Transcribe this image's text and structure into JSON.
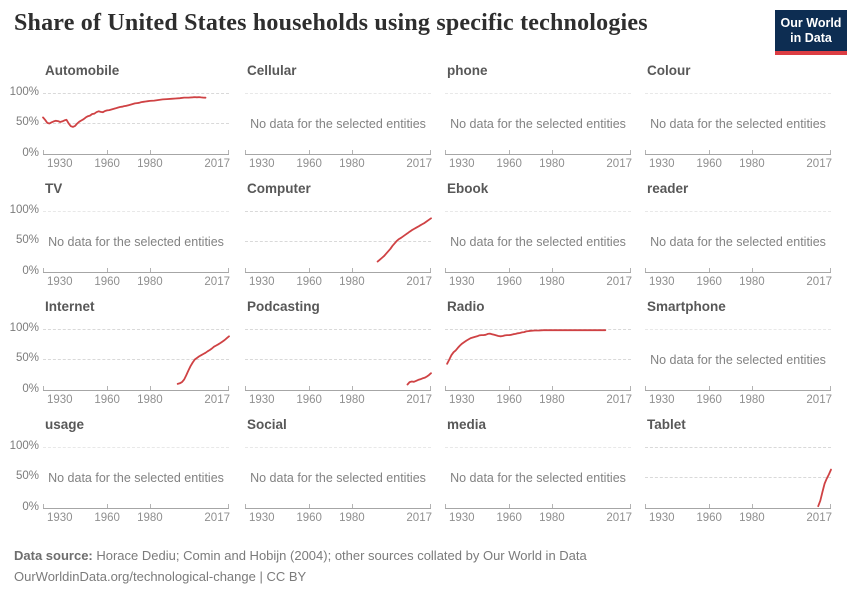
{
  "header": {
    "title": "Share of United States households using specific technologies",
    "logo": {
      "line1": "Our World",
      "line2": "in Data",
      "bg_color": "#0d2d52",
      "stripe_color": "#dc3d43",
      "text_color": "#ffffff"
    }
  },
  "chart_data": {
    "type": "line",
    "title": "Share of United States households using specific technologies",
    "x_range": [
      1930,
      2017
    ],
    "x_ticks": [
      "1930",
      "1960",
      "1980",
      "2017"
    ],
    "x_tick_years": [
      1930,
      1960,
      1980,
      2017
    ],
    "y_range": [
      0,
      100
    ],
    "y_ticks": [
      "0%",
      "50%",
      "100%"
    ],
    "grid": "dashed horizontal lines at 50% and 100%, solid baseline at 0%",
    "legend_position": "none",
    "line_color": "#cf4244",
    "no_data_text": "No data for the selected entities",
    "facets": [
      {
        "title": "Automobile",
        "no_data": false,
        "points": [
          [
            1930,
            60
          ],
          [
            1931,
            56
          ],
          [
            1932,
            51
          ],
          [
            1933,
            50
          ],
          [
            1934,
            52
          ],
          [
            1935,
            53.5
          ],
          [
            1936,
            54.5
          ],
          [
            1937,
            54
          ],
          [
            1938,
            52.5
          ],
          [
            1939,
            53.5
          ],
          [
            1940,
            55
          ],
          [
            1941,
            56
          ],
          [
            1942,
            50
          ],
          [
            1943,
            45.5
          ],
          [
            1944,
            44.5
          ],
          [
            1945,
            46
          ],
          [
            1946,
            50
          ],
          [
            1947,
            53
          ],
          [
            1948,
            55
          ],
          [
            1949,
            57
          ],
          [
            1950,
            60
          ],
          [
            1951,
            62
          ],
          [
            1952,
            63
          ],
          [
            1953,
            65.5
          ],
          [
            1954,
            66
          ],
          [
            1955,
            68.5
          ],
          [
            1956,
            70
          ],
          [
            1957,
            69
          ],
          [
            1958,
            68.5
          ],
          [
            1959,
            70.5
          ],
          [
            1960,
            71.5
          ],
          [
            1961,
            72
          ],
          [
            1962,
            73
          ],
          [
            1963,
            74
          ],
          [
            1964,
            75
          ],
          [
            1965,
            76
          ],
          [
            1966,
            77
          ],
          [
            1967,
            77.5
          ],
          [
            1968,
            78.5
          ],
          [
            1969,
            79
          ],
          [
            1970,
            80
          ],
          [
            1971,
            81
          ],
          [
            1972,
            82
          ],
          [
            1973,
            83
          ],
          [
            1974,
            83.5
          ],
          [
            1975,
            84
          ],
          [
            1976,
            85
          ],
          [
            1977,
            85.5
          ],
          [
            1978,
            86
          ],
          [
            1979,
            86.5
          ],
          [
            1980,
            87
          ],
          [
            1982,
            87.5
          ],
          [
            1984,
            88.5
          ],
          [
            1986,
            89.5
          ],
          [
            1988,
            90
          ],
          [
            1990,
            90.5
          ],
          [
            1992,
            91
          ],
          [
            1994,
            91.5
          ],
          [
            1996,
            92.5
          ],
          [
            1998,
            92.5
          ],
          [
            2000,
            93
          ],
          [
            2001,
            93.2
          ],
          [
            2002,
            93
          ],
          [
            2003,
            93.2
          ],
          [
            2004,
            92.8
          ],
          [
            2005,
            92.5
          ],
          [
            2006,
            92.3
          ]
        ]
      },
      {
        "title": "Cellular",
        "no_data": true,
        "points": []
      },
      {
        "title": "phone",
        "no_data": true,
        "points": []
      },
      {
        "title": "Colour",
        "no_data": true,
        "points": []
      },
      {
        "title": "TV",
        "no_data": true,
        "points": []
      },
      {
        "title": "Computer",
        "no_data": false,
        "points": [
          [
            1992,
            17
          ],
          [
            1993,
            20
          ],
          [
            1994,
            23
          ],
          [
            1995,
            26
          ],
          [
            1996,
            30
          ],
          [
            1997,
            34
          ],
          [
            1998,
            38
          ],
          [
            1999,
            43
          ],
          [
            2000,
            47
          ],
          [
            2001,
            51
          ],
          [
            2002,
            54
          ],
          [
            2003,
            56
          ],
          [
            2004,
            58.5
          ],
          [
            2005,
            61
          ],
          [
            2006,
            63.5
          ],
          [
            2007,
            66
          ],
          [
            2008,
            68.5
          ],
          [
            2009,
            70.5
          ],
          [
            2010,
            72.5
          ],
          [
            2011,
            74.5
          ],
          [
            2012,
            76.5
          ],
          [
            2013,
            78.5
          ],
          [
            2014,
            80.5
          ],
          [
            2015,
            83
          ],
          [
            2016,
            85.5
          ],
          [
            2017,
            88
          ]
        ]
      },
      {
        "title": "Ebook",
        "no_data": true,
        "points": []
      },
      {
        "title": "reader",
        "no_data": true,
        "points": []
      },
      {
        "title": "Internet",
        "no_data": false,
        "points": [
          [
            1993,
            10
          ],
          [
            1994,
            11
          ],
          [
            1995,
            13
          ],
          [
            1996,
            17
          ],
          [
            1997,
            24
          ],
          [
            1998,
            32
          ],
          [
            1999,
            39
          ],
          [
            2000,
            45
          ],
          [
            2001,
            50
          ],
          [
            2002,
            52.5
          ],
          [
            2003,
            55
          ],
          [
            2004,
            57
          ],
          [
            2005,
            59
          ],
          [
            2006,
            61
          ],
          [
            2007,
            63.5
          ],
          [
            2008,
            65.5
          ],
          [
            2009,
            68
          ],
          [
            2010,
            71
          ],
          [
            2011,
            73
          ],
          [
            2012,
            75
          ],
          [
            2013,
            77
          ],
          [
            2014,
            79.5
          ],
          [
            2015,
            82
          ],
          [
            2016,
            85
          ],
          [
            2017,
            88
          ]
        ]
      },
      {
        "title": "Podcasting",
        "no_data": false,
        "points": [
          [
            2006,
            9
          ],
          [
            2007,
            13
          ],
          [
            2008,
            14
          ],
          [
            2009,
            13.5
          ],
          [
            2010,
            15
          ],
          [
            2011,
            16.5
          ],
          [
            2012,
            17.5
          ],
          [
            2013,
            19
          ],
          [
            2014,
            20
          ],
          [
            2015,
            22
          ],
          [
            2016,
            24.5
          ],
          [
            2017,
            27.5
          ]
        ]
      },
      {
        "title": "Radio",
        "no_data": false,
        "points": [
          [
            1931,
            43
          ],
          [
            1932,
            50
          ],
          [
            1933,
            57
          ],
          [
            1934,
            62
          ],
          [
            1935,
            65
          ],
          [
            1936,
            69
          ],
          [
            1937,
            73
          ],
          [
            1938,
            76
          ],
          [
            1939,
            78.5
          ],
          [
            1940,
            81
          ],
          [
            1941,
            83
          ],
          [
            1942,
            85
          ],
          [
            1943,
            86
          ],
          [
            1944,
            87
          ],
          [
            1945,
            88
          ],
          [
            1946,
            89.5
          ],
          [
            1947,
            90
          ],
          [
            1948,
            90
          ],
          [
            1949,
            90.5
          ],
          [
            1950,
            92
          ],
          [
            1951,
            92.5
          ],
          [
            1952,
            91.5
          ],
          [
            1953,
            90.5
          ],
          [
            1954,
            89.5
          ],
          [
            1955,
            88.5
          ],
          [
            1956,
            88
          ],
          [
            1957,
            88.5
          ],
          [
            1958,
            89.5
          ],
          [
            1959,
            90
          ],
          [
            1960,
            90
          ],
          [
            1961,
            90.5
          ],
          [
            1962,
            91.5
          ],
          [
            1963,
            92
          ],
          [
            1964,
            93
          ],
          [
            1965,
            93.5
          ],
          [
            1966,
            94.5
          ],
          [
            1967,
            95
          ],
          [
            1968,
            96
          ],
          [
            1969,
            96.5
          ],
          [
            1970,
            97
          ],
          [
            1972,
            97.5
          ],
          [
            1974,
            97.5
          ],
          [
            1976,
            98
          ],
          [
            1980,
            98
          ],
          [
            1985,
            98
          ],
          [
            1990,
            98
          ],
          [
            1995,
            98
          ],
          [
            2000,
            98
          ],
          [
            2005,
            98
          ]
        ]
      },
      {
        "title": "Smartphone",
        "no_data": true,
        "points": []
      },
      {
        "title": "usage",
        "no_data": true,
        "points": []
      },
      {
        "title": "Social",
        "no_data": true,
        "points": []
      },
      {
        "title": "media",
        "no_data": true,
        "points": []
      },
      {
        "title": "Tablet",
        "no_data": false,
        "points": [
          [
            2011,
            3
          ],
          [
            2012,
            12
          ],
          [
            2013,
            26
          ],
          [
            2014,
            40
          ],
          [
            2015,
            48
          ],
          [
            2016,
            55
          ],
          [
            2017,
            63
          ]
        ]
      }
    ]
  },
  "footer": {
    "source_label": "Data source:",
    "source_text": " Horace Dediu; Comin and Hobijn (2004); other sources collated by Our World in Data",
    "link_text": "OurWorldinData.org/technological-change",
    "license_text": " | CC BY"
  }
}
